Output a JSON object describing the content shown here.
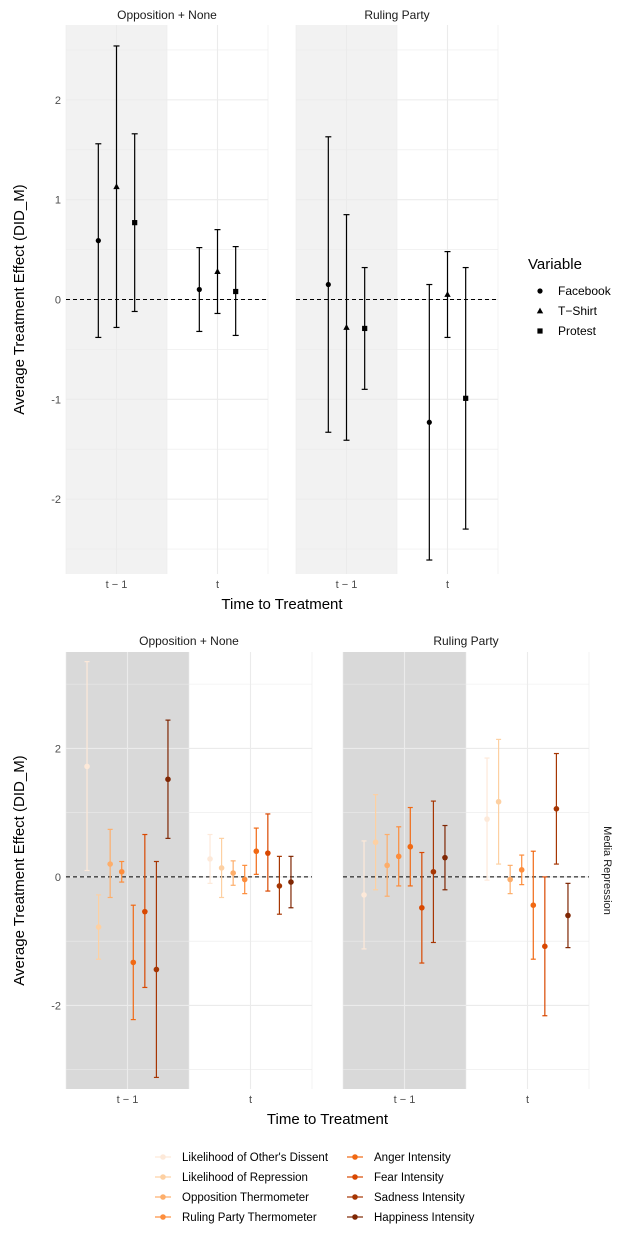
{
  "colors": {
    "panel_grid": "#ebebeb",
    "shade_top": "#f2f2f2",
    "shade_bottom": "#d9d9d9",
    "ink": "#000000",
    "tick_text": "#4d4d4d"
  },
  "chart_data": [
    {
      "type": "scatter",
      "subtype": "point-range with error bars",
      "facets": [
        "Opposition + None",
        "Ruling Party"
      ],
      "categories": [
        "t − 1",
        "t"
      ],
      "xlabel": "Time to Treatment",
      "ylabel": "Average Treatment Effect (DID_M)",
      "ylim": [
        -2.75,
        2.75
      ],
      "yticks": [
        -2,
        -1,
        0,
        1,
        2
      ],
      "reference_line": 0,
      "shaded_category": "t − 1",
      "legend": {
        "title": "Variable",
        "position": "right"
      },
      "series": [
        {
          "name": "Facebook",
          "shape": "circle",
          "points": [
            {
              "facet": "Opposition + None",
              "category": "t − 1",
              "estimate": 0.59,
              "lower": -0.38,
              "upper": 1.56
            },
            {
              "facet": "Opposition + None",
              "category": "t",
              "estimate": 0.1,
              "lower": -0.32,
              "upper": 0.52
            },
            {
              "facet": "Ruling Party",
              "category": "t − 1",
              "estimate": 0.15,
              "lower": -1.33,
              "upper": 1.63
            },
            {
              "facet": "Ruling Party",
              "category": "t",
              "estimate": -1.23,
              "lower": -2.61,
              "upper": 0.15
            }
          ]
        },
        {
          "name": "T−Shirt",
          "shape": "triangle",
          "points": [
            {
              "facet": "Opposition + None",
              "category": "t − 1",
              "estimate": 1.13,
              "lower": -0.28,
              "upper": 2.54
            },
            {
              "facet": "Opposition + None",
              "category": "t",
              "estimate": 0.28,
              "lower": -0.14,
              "upper": 0.7
            },
            {
              "facet": "Ruling Party",
              "category": "t − 1",
              "estimate": -0.28,
              "lower": -1.41,
              "upper": 0.85
            },
            {
              "facet": "Ruling Party",
              "category": "t",
              "estimate": 0.05,
              "lower": -0.38,
              "upper": 0.48
            }
          ]
        },
        {
          "name": "Protest",
          "shape": "square",
          "points": [
            {
              "facet": "Opposition + None",
              "category": "t − 1",
              "estimate": 0.77,
              "lower": -0.12,
              "upper": 1.66
            },
            {
              "facet": "Opposition + None",
              "category": "t",
              "estimate": 0.08,
              "lower": -0.36,
              "upper": 0.53
            },
            {
              "facet": "Ruling Party",
              "category": "t − 1",
              "estimate": -0.29,
              "lower": -0.9,
              "upper": 0.32
            },
            {
              "facet": "Ruling Party",
              "category": "t",
              "estimate": -0.99,
              "lower": -2.3,
              "upper": 0.32
            }
          ]
        }
      ]
    },
    {
      "type": "scatter",
      "subtype": "point-range with error bars",
      "facets": [
        "Opposition + None",
        "Ruling Party"
      ],
      "strip_label": "Media Repression",
      "categories": [
        "t − 1",
        "t"
      ],
      "xlabel": "Time to Treatment",
      "ylabel": "Average Treatment Effect (DID_M)",
      "ylim": [
        -3.3,
        3.5
      ],
      "yticks": [
        -2,
        0,
        2
      ],
      "reference_line": 0,
      "shaded_category": "t − 1",
      "legend": {
        "title": "",
        "position": "bottom",
        "columns": 2
      },
      "series": [
        {
          "name": "Likelihood of Other's Dissent",
          "color": "#fde9d9",
          "points": [
            {
              "facet": "Opposition + None",
              "category": "t − 1",
              "estimate": 1.72,
              "lower": 0.1,
              "upper": 3.35
            },
            {
              "facet": "Opposition + None",
              "category": "t",
              "estimate": 0.28,
              "lower": -0.1,
              "upper": 0.66
            },
            {
              "facet": "Ruling Party",
              "category": "t − 1",
              "estimate": -0.28,
              "lower": -1.12,
              "upper": 0.56
            },
            {
              "facet": "Ruling Party",
              "category": "t",
              "estimate": 0.9,
              "lower": -0.05,
              "upper": 1.85
            }
          ]
        },
        {
          "name": "Likelihood of Repression",
          "color": "#fdd0a2",
          "points": [
            {
              "facet": "Opposition + None",
              "category": "t − 1",
              "estimate": -0.78,
              "lower": -1.28,
              "upper": -0.28
            },
            {
              "facet": "Opposition + None",
              "category": "t",
              "estimate": 0.14,
              "lower": -0.32,
              "upper": 0.6
            },
            {
              "facet": "Ruling Party",
              "category": "t − 1",
              "estimate": 0.54,
              "lower": -0.2,
              "upper": 1.28
            },
            {
              "facet": "Ruling Party",
              "category": "t",
              "estimate": 1.17,
              "lower": 0.2,
              "upper": 2.14
            }
          ]
        },
        {
          "name": "Opposition Thermometer",
          "color": "#fdae6b",
          "points": [
            {
              "facet": "Opposition + None",
              "category": "t − 1",
              "estimate": 0.2,
              "lower": -0.32,
              "upper": 0.74
            },
            {
              "facet": "Opposition + None",
              "category": "t",
              "estimate": 0.06,
              "lower": -0.13,
              "upper": 0.25
            },
            {
              "facet": "Ruling Party",
              "category": "t − 1",
              "estimate": 0.18,
              "lower": -0.3,
              "upper": 0.66
            },
            {
              "facet": "Ruling Party",
              "category": "t",
              "estimate": -0.04,
              "lower": -0.26,
              "upper": 0.18
            }
          ]
        },
        {
          "name": "Ruling Party Thermometer",
          "color": "#fd8d3c",
          "points": [
            {
              "facet": "Opposition + None",
              "category": "t − 1",
              "estimate": 0.08,
              "lower": -0.08,
              "upper": 0.24
            },
            {
              "facet": "Opposition + None",
              "category": "t",
              "estimate": -0.04,
              "lower": -0.26,
              "upper": 0.18
            },
            {
              "facet": "Ruling Party",
              "category": "t − 1",
              "estimate": 0.32,
              "lower": -0.14,
              "upper": 0.78
            },
            {
              "facet": "Ruling Party",
              "category": "t",
              "estimate": 0.11,
              "lower": -0.12,
              "upper": 0.34
            }
          ]
        },
        {
          "name": "Anger Intensity",
          "color": "#f16913",
          "points": [
            {
              "facet": "Opposition + None",
              "category": "t − 1",
              "estimate": -1.33,
              "lower": -2.22,
              "upper": -0.44
            },
            {
              "facet": "Opposition + None",
              "category": "t",
              "estimate": 0.4,
              "lower": 0.04,
              "upper": 0.76
            },
            {
              "facet": "Ruling Party",
              "category": "t − 1",
              "estimate": 0.47,
              "lower": -0.14,
              "upper": 1.08
            },
            {
              "facet": "Ruling Party",
              "category": "t",
              "estimate": -0.44,
              "lower": -1.28,
              "upper": 0.4
            }
          ]
        },
        {
          "name": "Fear Intensity",
          "color": "#d94801",
          "points": [
            {
              "facet": "Opposition + None",
              "category": "t − 1",
              "estimate": -0.54,
              "lower": -1.72,
              "upper": 0.66
            },
            {
              "facet": "Opposition + None",
              "category": "t",
              "estimate": 0.37,
              "lower": -0.22,
              "upper": 0.98
            },
            {
              "facet": "Ruling Party",
              "category": "t − 1",
              "estimate": -0.48,
              "lower": -1.34,
              "upper": 0.38
            },
            {
              "facet": "Ruling Party",
              "category": "t",
              "estimate": -1.08,
              "lower": -2.16,
              "upper": 0.0
            }
          ]
        },
        {
          "name": "Sadness Intensity",
          "color": "#a63603",
          "points": [
            {
              "facet": "Opposition + None",
              "category": "t − 1",
              "estimate": -1.44,
              "lower": -3.12,
              "upper": 0.24
            },
            {
              "facet": "Opposition + None",
              "category": "t",
              "estimate": -0.14,
              "lower": -0.58,
              "upper": 0.32
            },
            {
              "facet": "Ruling Party",
              "category": "t − 1",
              "estimate": 0.08,
              "lower": -1.02,
              "upper": 1.18
            },
            {
              "facet": "Ruling Party",
              "category": "t",
              "estimate": 1.06,
              "lower": 0.2,
              "upper": 1.92
            }
          ]
        },
        {
          "name": "Happiness Intensity",
          "color": "#7f2704",
          "points": [
            {
              "facet": "Opposition + None",
              "category": "t − 1",
              "estimate": 1.52,
              "lower": 0.6,
              "upper": 2.44
            },
            {
              "facet": "Opposition + None",
              "category": "t",
              "estimate": -0.08,
              "lower": -0.48,
              "upper": 0.32
            },
            {
              "facet": "Ruling Party",
              "category": "t − 1",
              "estimate": 0.3,
              "lower": -0.2,
              "upper": 0.8
            },
            {
              "facet": "Ruling Party",
              "category": "t",
              "estimate": -0.6,
              "lower": -1.1,
              "upper": -0.1
            }
          ]
        }
      ]
    }
  ]
}
